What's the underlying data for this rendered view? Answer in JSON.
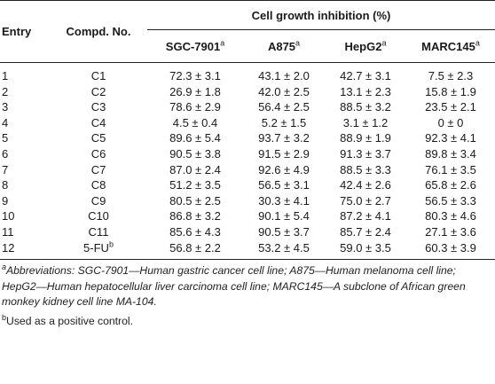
{
  "table": {
    "headers": {
      "entry": "Entry",
      "compd": "Compd. No.",
      "group": "Cell growth inhibition (%)",
      "sgc": "SGC-7901",
      "a875": "A875",
      "hepg2": "HepG2",
      "marc": "MARC145",
      "sup_a": "a"
    },
    "rows": [
      {
        "entry": "1",
        "compd": "C1",
        "sgc": "72.3 ± 3.1",
        "a875": "43.1 ± 2.0",
        "hepg2": "42.7 ± 3.1",
        "marc": "7.5 ± 2.3"
      },
      {
        "entry": "2",
        "compd": "C2",
        "sgc": "26.9 ± 1.8",
        "a875": "42.0 ± 2.5",
        "hepg2": "13.1 ± 2.3",
        "marc": "15.8 ± 1.9"
      },
      {
        "entry": "3",
        "compd": "C3",
        "sgc": "78.6 ± 2.9",
        "a875": "56.4 ± 2.5",
        "hepg2": "88.5 ± 3.2",
        "marc": "23.5 ± 2.1"
      },
      {
        "entry": "4",
        "compd": "C4",
        "sgc": "4.5 ± 0.4",
        "a875": "5.2 ± 1.5",
        "hepg2": "3.1 ± 1.2",
        "marc": "0 ± 0"
      },
      {
        "entry": "5",
        "compd": "C5",
        "sgc": "89.6 ± 5.4",
        "a875": "93.7 ± 3.2",
        "hepg2": "88.9 ± 1.9",
        "marc": "92.3 ± 4.1"
      },
      {
        "entry": "6",
        "compd": "C6",
        "sgc": "90.5 ± 3.8",
        "a875": "91.5 ± 2.9",
        "hepg2": "91.3 ± 3.7",
        "marc": "89.8 ± 3.4"
      },
      {
        "entry": "7",
        "compd": "C7",
        "sgc": "87.0 ± 2.4",
        "a875": "92.6 ± 4.9",
        "hepg2": "88.5 ± 3.3",
        "marc": "76.1 ± 3.5"
      },
      {
        "entry": "8",
        "compd": "C8",
        "sgc": "51.2 ± 3.5",
        "a875": "56.5 ± 3.1",
        "hepg2": "42.4 ± 2.6",
        "marc": "65.8 ± 2.6"
      },
      {
        "entry": "9",
        "compd": "C9",
        "sgc": "80.5 ± 2.5",
        "a875": "30.3 ± 4.1",
        "hepg2": "75.0 ± 2.7",
        "marc": "56.5 ± 3.3"
      },
      {
        "entry": "10",
        "compd": "C10",
        "sgc": "86.8 ± 3.2",
        "a875": "90.1 ± 5.4",
        "hepg2": "87.2 ± 4.1",
        "marc": "80.3 ± 4.6"
      },
      {
        "entry": "11",
        "compd": "C11",
        "sgc": "85.6 ± 4.3",
        "a875": "90.5 ± 3.7",
        "hepg2": "85.7 ± 2.4",
        "marc": "27.1 ± 3.6"
      },
      {
        "entry": "12",
        "compd": "5-FU",
        "compd_sup": "b",
        "sgc": "56.8 ± 2.2",
        "a875": "53.2 ± 4.5",
        "hepg2": "59.0 ± 3.5",
        "marc": "60.3 ± 3.9"
      }
    ]
  },
  "footnotes": {
    "a_mark": "a",
    "a_text": "Abbreviations: SGC-7901—Human gastric cancer cell line; A875—Human melanoma cell line; HepG2—Human hepatocellular liver carcinoma cell line; MARC145—A subclone of African green monkey kidney cell line MA-104.",
    "b_mark": "b",
    "b_text": "Used as a positive control."
  }
}
